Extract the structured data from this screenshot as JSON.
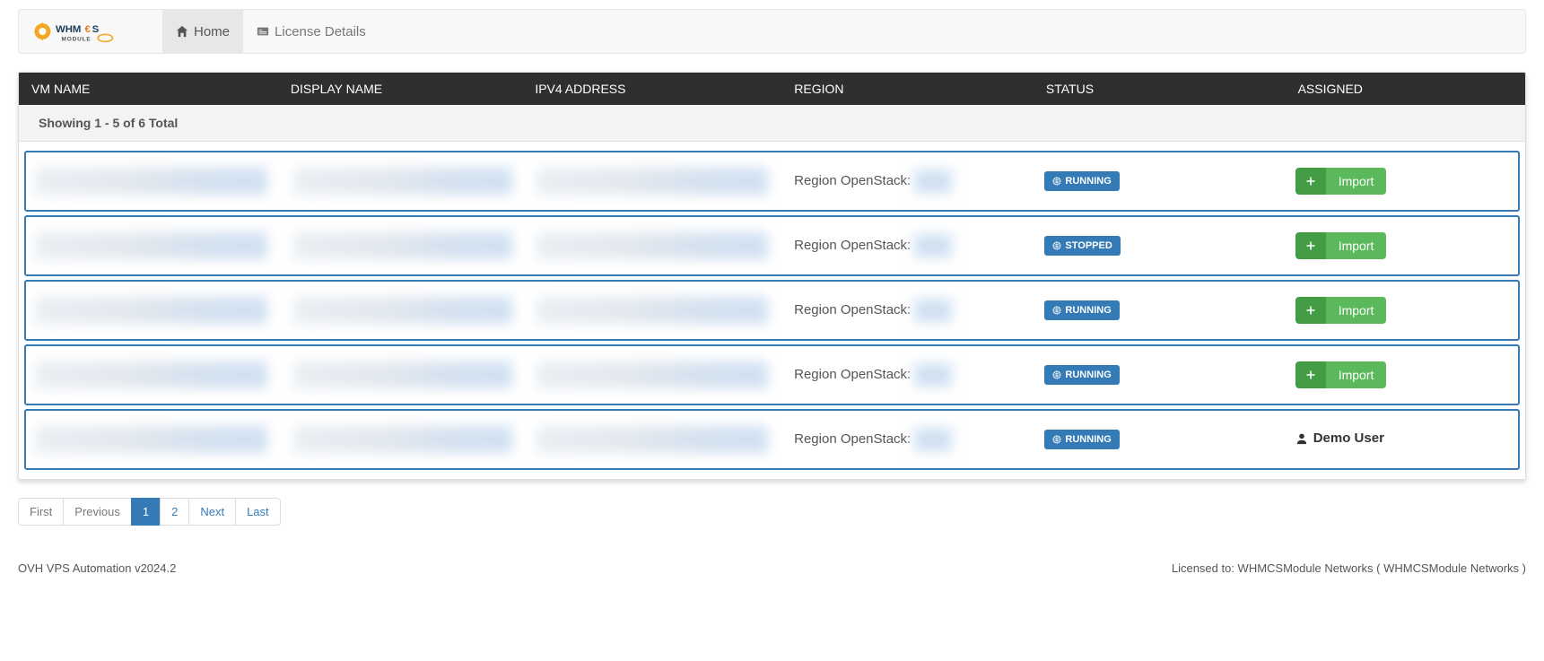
{
  "nav": {
    "home": "Home",
    "license": "License Details"
  },
  "table": {
    "headers": {
      "vm_name": "VM NAME",
      "display_name": "DISPLAY NAME",
      "ipv4": "IPV4 ADDRESS",
      "region": "REGION",
      "status": "STATUS",
      "assigned": "ASSIGNED"
    },
    "showing": "Showing 1 - 5 of 6 Total",
    "region_prefix": "Region OpenStack:",
    "import_label": "Import",
    "rows": [
      {
        "status": "RUNNING",
        "assigned_type": "import"
      },
      {
        "status": "STOPPED",
        "assigned_type": "import"
      },
      {
        "status": "RUNNING",
        "assigned_type": "import"
      },
      {
        "status": "RUNNING",
        "assigned_type": "import"
      },
      {
        "status": "RUNNING",
        "assigned_type": "user",
        "assigned_user": "Demo User"
      }
    ]
  },
  "pagination": {
    "first": "First",
    "previous": "Previous",
    "pages": [
      "1",
      "2"
    ],
    "active": "1",
    "next": "Next",
    "last": "Last"
  },
  "footer": {
    "left": "OVH VPS Automation v2024.2",
    "right": "Licensed to: WHMCSModule Networks ( WHMCSModule Networks )"
  },
  "colors": {
    "primary": "#337ab7",
    "success": "#5cb85c",
    "success_dark": "#449d44",
    "header_bg": "#2f2f2f"
  }
}
